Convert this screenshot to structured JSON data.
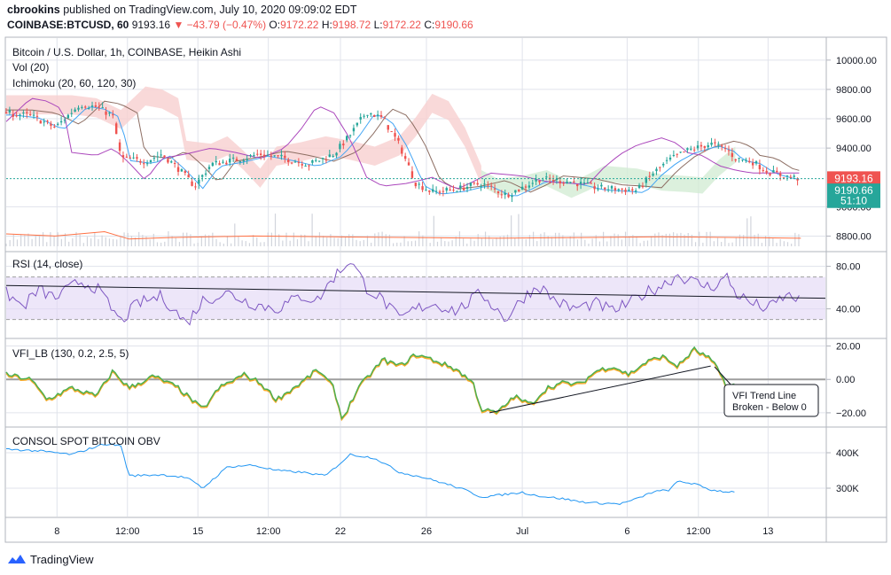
{
  "header": {
    "author": "cbrookins",
    "published_text": "published on TradingView.com, July 10, 2020 09:09:02 EDT",
    "symbol": "COINBASE:BTCUSD, 60",
    "last": "9193.16",
    "change": "−43.79 (−0.47%)",
    "o_label": "O:",
    "o_value": "9172.22",
    "h_label": "H:",
    "h_value": "9198.72",
    "l_label": "L:",
    "l_value": "9172.22",
    "c_label": "C:",
    "c_value": "9190.66"
  },
  "footer": {
    "brand": "TradingView"
  },
  "colors": {
    "up": "#26a69a",
    "down": "#ef5350",
    "rsi": "#7e57c2",
    "rsi_band": "#e1d5f5",
    "vfi": "#4caf50",
    "vfi_under": "#f9a825",
    "obv": "#2196f3",
    "grid": "#e0e3eb",
    "cloud_red": "#f8d0cf",
    "cloud_green": "#d3ecd5"
  },
  "chart_data": [
    {
      "pane": "price",
      "type": "candlestick",
      "title": "Bitcoin / U.S. Dollar, 1h, COINBASE, Heikin Ashi",
      "indicators": [
        "Vol (20)",
        "Ichimoku (20, 60, 120, 30)"
      ],
      "y_ticks": [
        "10000.00",
        "9800.00",
        "9600.00",
        "9400.00",
        "9000.00",
        "8800.00"
      ],
      "ylim": [
        8700,
        10150
      ],
      "price_tags": [
        {
          "text": "9193.16",
          "color": "#ef5350"
        },
        {
          "text": "9190.66",
          "color": "#26a69a"
        },
        {
          "text": "51:10",
          "color": "#26a69a"
        }
      ],
      "price_path": [
        [
          0,
          9640
        ],
        [
          3,
          9620
        ],
        [
          6,
          9540
        ],
        [
          9,
          9700
        ],
        [
          11,
          9680
        ],
        [
          13,
          9620
        ],
        [
          14,
          9330
        ],
        [
          17,
          9310
        ],
        [
          19,
          9360
        ],
        [
          21,
          9260
        ],
        [
          23,
          9140
        ],
        [
          25,
          9290
        ],
        [
          28,
          9320
        ],
        [
          31,
          9360
        ],
        [
          34,
          9330
        ],
        [
          37,
          9290
        ],
        [
          40,
          9360
        ],
        [
          42,
          9490
        ],
        [
          44,
          9650
        ],
        [
          46,
          9600
        ],
        [
          48,
          9420
        ],
        [
          50,
          9160
        ],
        [
          52,
          9100
        ],
        [
          55,
          9120
        ],
        [
          58,
          9160
        ],
        [
          61,
          9080
        ],
        [
          63,
          9130
        ],
        [
          65,
          9190
        ],
        [
          67,
          9180
        ],
        [
          69,
          9170
        ],
        [
          72,
          9130
        ],
        [
          75,
          9120
        ],
        [
          77,
          9110
        ],
        [
          79,
          9230
        ],
        [
          81,
          9320
        ],
        [
          83,
          9380
        ],
        [
          86,
          9430
        ],
        [
          88,
          9390
        ],
        [
          89,
          9330
        ],
        [
          91,
          9310
        ],
        [
          93,
          9240
        ],
        [
          95,
          9210
        ],
        [
          97,
          9190
        ]
      ],
      "volume_path": [
        [
          0,
          8815
        ],
        [
          6,
          8800
        ],
        [
          12,
          8830
        ],
        [
          15,
          8780
        ],
        [
          20,
          8790
        ],
        [
          30,
          8800
        ],
        [
          40,
          8795
        ],
        [
          50,
          8790
        ],
        [
          60,
          8785
        ],
        [
          70,
          8790
        ],
        [
          80,
          8795
        ],
        [
          90,
          8790
        ],
        [
          97,
          8785
        ]
      ]
    },
    {
      "pane": "rsi",
      "type": "line",
      "title": "RSI (14, close)",
      "y_ticks": [
        "80.00",
        "40.00"
      ],
      "ylim": [
        13,
        93
      ],
      "band": [
        30,
        70
      ],
      "trendline": [
        [
          0,
          62
        ],
        [
          100,
          50
        ]
      ],
      "values_path": [
        [
          0,
          55
        ],
        [
          2,
          42
        ],
        [
          4,
          58
        ],
        [
          6,
          50
        ],
        [
          9,
          66
        ],
        [
          11,
          60
        ],
        [
          14,
          28
        ],
        [
          16,
          45
        ],
        [
          19,
          52
        ],
        [
          22,
          26
        ],
        [
          24,
          48
        ],
        [
          27,
          55
        ],
        [
          30,
          45
        ],
        [
          33,
          40
        ],
        [
          36,
          52
        ],
        [
          38,
          48
        ],
        [
          40,
          70
        ],
        [
          42,
          86
        ],
        [
          44,
          60
        ],
        [
          46,
          48
        ],
        [
          48,
          30
        ],
        [
          50,
          40
        ],
        [
          52,
          45
        ],
        [
          55,
          38
        ],
        [
          58,
          55
        ],
        [
          61,
          30
        ],
        [
          63,
          50
        ],
        [
          65,
          62
        ],
        [
          67,
          48
        ],
        [
          69,
          40
        ],
        [
          72,
          45
        ],
        [
          74,
          38
        ],
        [
          76,
          45
        ],
        [
          78,
          55
        ],
        [
          80,
          62
        ],
        [
          82,
          72
        ],
        [
          84,
          65
        ],
        [
          86,
          60
        ],
        [
          88,
          70
        ],
        [
          89,
          55
        ],
        [
          91,
          45
        ],
        [
          93,
          40
        ],
        [
          95,
          52
        ],
        [
          97,
          50
        ]
      ]
    },
    {
      "pane": "vfi",
      "type": "line",
      "title": "VFI_LB (130, 0.2, 2.5, 5)",
      "y_ticks": [
        "20.00",
        "0.00",
        "−20.00"
      ],
      "ylim": [
        -28,
        24
      ],
      "trendline": [
        [
          59,
          -20
        ],
        [
          86,
          8
        ]
      ],
      "annotation": "VFI Trend Line Broken - Below 0",
      "annotation_lines": [
        "VFI Trend Line",
        "Broken - Below 0"
      ],
      "values_path": [
        [
          0,
          3
        ],
        [
          3,
          0
        ],
        [
          5,
          -12
        ],
        [
          8,
          -5
        ],
        [
          11,
          -10
        ],
        [
          13,
          5
        ],
        [
          15,
          -5
        ],
        [
          18,
          2
        ],
        [
          21,
          -5
        ],
        [
          24,
          -18
        ],
        [
          26,
          -5
        ],
        [
          29,
          3
        ],
        [
          31,
          -2
        ],
        [
          33,
          -12
        ],
        [
          36,
          -2
        ],
        [
          38,
          6
        ],
        [
          40,
          -5
        ],
        [
          41,
          -24
        ],
        [
          43,
          -5
        ],
        [
          46,
          12
        ],
        [
          48,
          8
        ],
        [
          50,
          15
        ],
        [
          52,
          12
        ],
        [
          55,
          6
        ],
        [
          57,
          -2
        ],
        [
          58,
          -18
        ],
        [
          60,
          -20
        ],
        [
          62,
          -10
        ],
        [
          64,
          -15
        ],
        [
          66,
          -5
        ],
        [
          68,
          -2
        ],
        [
          70,
          -3
        ],
        [
          72,
          5
        ],
        [
          74,
          8
        ],
        [
          76,
          3
        ],
        [
          78,
          10
        ],
        [
          80,
          14
        ],
        [
          82,
          8
        ],
        [
          84,
          18
        ],
        [
          86,
          12
        ],
        [
          87,
          5
        ],
        [
          88,
          -4
        ],
        [
          89,
          -3
        ]
      ]
    },
    {
      "pane": "obv",
      "type": "line",
      "title": "CONSOL SPOT BITCOIN OBV",
      "y_ticks": [
        "400K",
        "300K"
      ],
      "ylim": [
        220,
        470
      ],
      "values_path": [
        [
          0,
          410
        ],
        [
          4,
          405
        ],
        [
          8,
          395
        ],
        [
          12,
          425
        ],
        [
          14,
          420
        ],
        [
          15,
          335
        ],
        [
          19,
          338
        ],
        [
          22,
          330
        ],
        [
          24,
          300
        ],
        [
          27,
          360
        ],
        [
          30,
          365
        ],
        [
          33,
          350
        ],
        [
          36,
          345
        ],
        [
          39,
          335
        ],
        [
          42,
          395
        ],
        [
          45,
          385
        ],
        [
          48,
          345
        ],
        [
          51,
          330
        ],
        [
          54,
          310
        ],
        [
          56,
          295
        ],
        [
          58,
          275
        ],
        [
          60,
          280
        ],
        [
          63,
          288
        ],
        [
          65,
          278
        ],
        [
          68,
          270
        ],
        [
          70,
          262
        ],
        [
          72,
          258
        ],
        [
          75,
          256
        ],
        [
          77,
          270
        ],
        [
          79,
          290
        ],
        [
          81,
          295
        ],
        [
          82,
          320
        ],
        [
          84,
          312
        ],
        [
          86,
          295
        ],
        [
          88,
          290
        ],
        [
          89,
          290
        ]
      ]
    }
  ],
  "x_axis": {
    "ticks": [
      "8",
      "12:00",
      "15",
      "12:00",
      "22",
      "26",
      "Jul",
      "6",
      "12:00",
      "13"
    ]
  }
}
